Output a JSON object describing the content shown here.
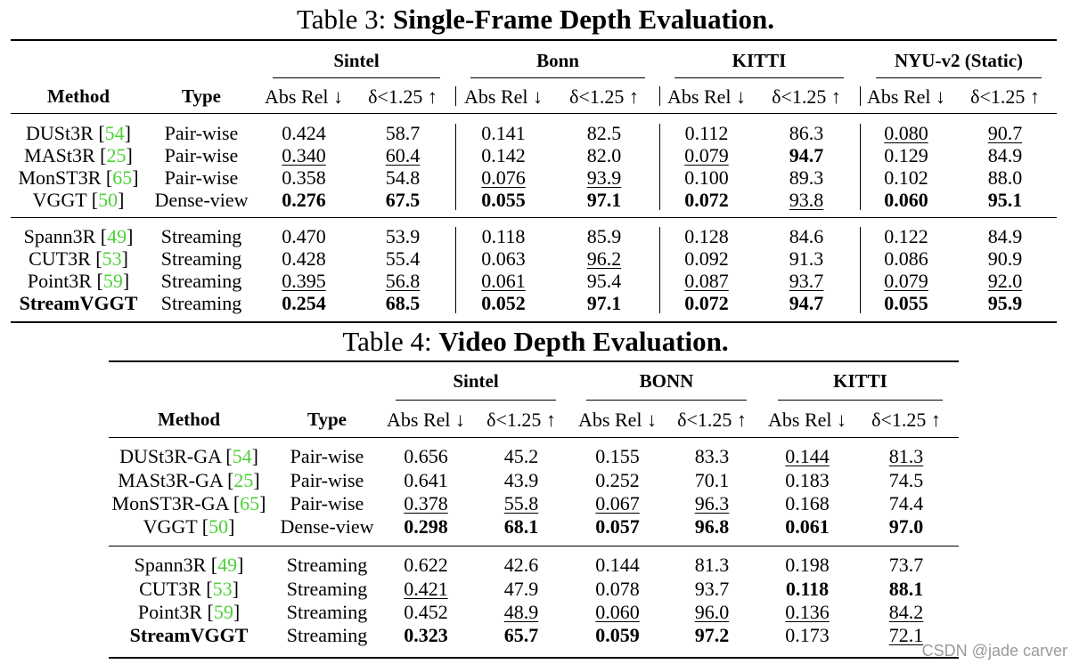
{
  "tables": [
    {
      "number_label": "Table 3:",
      "title": "Single-Frame Depth Evaluation.",
      "method_header": "Method",
      "type_header": "Type",
      "datasets": [
        "Sintel",
        "Bonn",
        "KITTI",
        "NYU-v2 (Static)"
      ],
      "metric_headers": [
        "Abs Rel ↓",
        "δ<1.25 ↑"
      ],
      "groups": [
        [
          {
            "method": "DUSt3R",
            "cite": "54",
            "type": "Pair-wise",
            "cells": [
              {
                "v": "0.424"
              },
              {
                "v": "58.7"
              },
              {
                "v": "0.141"
              },
              {
                "v": "82.5"
              },
              {
                "v": "0.112"
              },
              {
                "v": "86.3"
              },
              {
                "v": "0.080",
                "u": true
              },
              {
                "v": "90.7",
                "u": true
              }
            ]
          },
          {
            "method": "MASt3R",
            "cite": "25",
            "type": "Pair-wise",
            "cells": [
              {
                "v": "0.340",
                "u": true
              },
              {
                "v": "60.4",
                "u": true
              },
              {
                "v": "0.142"
              },
              {
                "v": "82.0"
              },
              {
                "v": "0.079",
                "u": true
              },
              {
                "v": "94.7",
                "b": true
              },
              {
                "v": "0.129"
              },
              {
                "v": "84.9"
              }
            ]
          },
          {
            "method": "MonST3R",
            "cite": "65",
            "type": "Pair-wise",
            "cells": [
              {
                "v": "0.358"
              },
              {
                "v": "54.8"
              },
              {
                "v": "0.076",
                "u": true
              },
              {
                "v": "93.9",
                "u": true
              },
              {
                "v": "0.100"
              },
              {
                "v": "89.3"
              },
              {
                "v": "0.102"
              },
              {
                "v": "88.0"
              }
            ]
          },
          {
            "method": "VGGT",
            "cite": "50",
            "type": "Dense-view",
            "cells": [
              {
                "v": "0.276",
                "b": true
              },
              {
                "v": "67.5",
                "b": true
              },
              {
                "v": "0.055",
                "b": true
              },
              {
                "v": "97.1",
                "b": true
              },
              {
                "v": "0.072",
                "b": true
              },
              {
                "v": "93.8",
                "u": true
              },
              {
                "v": "0.060",
                "b": true
              },
              {
                "v": "95.1",
                "b": true
              }
            ]
          }
        ],
        [
          {
            "method": "Spann3R",
            "cite": "49",
            "type": "Streaming",
            "cells": [
              {
                "v": "0.470"
              },
              {
                "v": "53.9"
              },
              {
                "v": "0.118"
              },
              {
                "v": "85.9"
              },
              {
                "v": "0.128"
              },
              {
                "v": "84.6"
              },
              {
                "v": "0.122"
              },
              {
                "v": "84.9"
              }
            ]
          },
          {
            "method": "CUT3R",
            "cite": "53",
            "type": "Streaming",
            "cells": [
              {
                "v": "0.428"
              },
              {
                "v": "55.4"
              },
              {
                "v": "0.063"
              },
              {
                "v": "96.2",
                "u": true
              },
              {
                "v": "0.092"
              },
              {
                "v": "91.3"
              },
              {
                "v": "0.086"
              },
              {
                "v": "90.9"
              }
            ]
          },
          {
            "method": "Point3R",
            "cite": "59",
            "type": "Streaming",
            "cells": [
              {
                "v": "0.395",
                "u": true
              },
              {
                "v": "56.8",
                "u": true
              },
              {
                "v": "0.061",
                "u": true
              },
              {
                "v": "95.4"
              },
              {
                "v": "0.087",
                "u": true
              },
              {
                "v": "93.7",
                "u": true
              },
              {
                "v": "0.079",
                "u": true
              },
              {
                "v": "92.0",
                "u": true
              }
            ]
          },
          {
            "method": "StreamVGGT",
            "cite": "",
            "bold": true,
            "type": "Streaming",
            "cells": [
              {
                "v": "0.254",
                "b": true
              },
              {
                "v": "68.5",
                "b": true
              },
              {
                "v": "0.052",
                "b": true
              },
              {
                "v": "97.1",
                "b": true
              },
              {
                "v": "0.072",
                "b": true
              },
              {
                "v": "94.7",
                "b": true
              },
              {
                "v": "0.055",
                "b": true
              },
              {
                "v": "95.9",
                "b": true
              }
            ]
          }
        ]
      ]
    },
    {
      "number_label": "Table 4:",
      "title": "Video Depth Evaluation.",
      "method_header": "Method",
      "type_header": "Type",
      "datasets": [
        "Sintel",
        "BONN",
        "KITTI"
      ],
      "metric_headers": [
        "Abs Rel ↓",
        "δ<1.25 ↑"
      ],
      "groups": [
        [
          {
            "method": "DUSt3R-GA",
            "cite": "54",
            "type": "Pair-wise",
            "cells": [
              {
                "v": "0.656"
              },
              {
                "v": "45.2"
              },
              {
                "v": "0.155"
              },
              {
                "v": "83.3"
              },
              {
                "v": "0.144",
                "u": true
              },
              {
                "v": "81.3",
                "u": true
              }
            ]
          },
          {
            "method": "MASt3R-GA",
            "cite": "25",
            "type": "Pair-wise",
            "cells": [
              {
                "v": "0.641"
              },
              {
                "v": "43.9"
              },
              {
                "v": "0.252"
              },
              {
                "v": "70.1"
              },
              {
                "v": "0.183"
              },
              {
                "v": "74.5"
              }
            ]
          },
          {
            "method": "MonST3R-GA",
            "cite": "65",
            "type": "Pair-wise",
            "cells": [
              {
                "v": "0.378",
                "u": true
              },
              {
                "v": "55.8",
                "u": true
              },
              {
                "v": "0.067",
                "u": true
              },
              {
                "v": "96.3",
                "u": true
              },
              {
                "v": "0.168"
              },
              {
                "v": "74.4"
              }
            ]
          },
          {
            "method": "VGGT",
            "cite": "50",
            "type": "Dense-view",
            "cells": [
              {
                "v": "0.298",
                "b": true
              },
              {
                "v": "68.1",
                "b": true
              },
              {
                "v": "0.057",
                "b": true
              },
              {
                "v": "96.8",
                "b": true
              },
              {
                "v": "0.061",
                "b": true
              },
              {
                "v": "97.0",
                "b": true
              }
            ]
          }
        ],
        [
          {
            "method": "Spann3R",
            "cite": "49",
            "type": "Streaming",
            "cells": [
              {
                "v": "0.622"
              },
              {
                "v": "42.6"
              },
              {
                "v": "0.144"
              },
              {
                "v": "81.3"
              },
              {
                "v": "0.198"
              },
              {
                "v": "73.7"
              }
            ]
          },
          {
            "method": "CUT3R",
            "cite": "53",
            "type": "Streaming",
            "cells": [
              {
                "v": "0.421",
                "u": true
              },
              {
                "v": "47.9"
              },
              {
                "v": "0.078"
              },
              {
                "v": "93.7"
              },
              {
                "v": "0.118",
                "b": true
              },
              {
                "v": "88.1",
                "b": true
              }
            ]
          },
          {
            "method": "Point3R",
            "cite": "59",
            "type": "Streaming",
            "cells": [
              {
                "v": "0.452"
              },
              {
                "v": "48.9",
                "u": true
              },
              {
                "v": "0.060",
                "u": true
              },
              {
                "v": "96.0",
                "u": true
              },
              {
                "v": "0.136",
                "u": true
              },
              {
                "v": "84.2",
                "u": true
              }
            ]
          },
          {
            "method": "StreamVGGT",
            "cite": "",
            "bold": true,
            "type": "Streaming",
            "cells": [
              {
                "v": "0.323",
                "b": true
              },
              {
                "v": "65.7",
                "b": true
              },
              {
                "v": "0.059",
                "b": true
              },
              {
                "v": "97.2",
                "b": true
              },
              {
                "v": "0.173"
              },
              {
                "v": "72.1",
                "u": true
              }
            ]
          }
        ]
      ]
    }
  ],
  "watermark": "CSDN @jade carver"
}
